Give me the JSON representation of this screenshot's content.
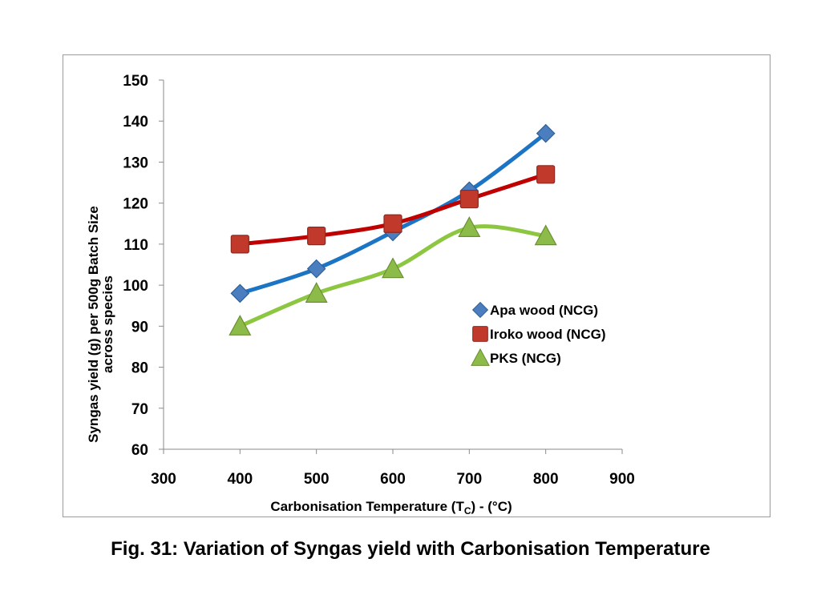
{
  "caption": "Fig. 31: Variation of Syngas yield with Carbonisation Temperature",
  "chart_data": {
    "type": "scatter",
    "title": "",
    "xlabel": "Carbonisation Temperature (T",
    "xlabel_sub": "C",
    "xlabel_suffix": ") - (°C)",
    "ylabel_line1": "Syngas yield (g) per 500g Batch  Size",
    "ylabel_line2": "across  species",
    "xlim": [
      300,
      900
    ],
    "ylim": [
      60,
      150
    ],
    "xticks": [
      300,
      400,
      500,
      600,
      700,
      800,
      900
    ],
    "yticks": [
      60,
      70,
      80,
      90,
      100,
      110,
      120,
      130,
      140,
      150
    ],
    "grid": false,
    "legend_position": "right",
    "series": [
      {
        "name": "Apa wood (NCG)",
        "marker": "diamond",
        "marker_color": "#4a7ebf",
        "line_color": "#1c75c4",
        "x": [
          400,
          500,
          600,
          700,
          800
        ],
        "y": [
          98,
          104,
          113,
          123,
          137
        ]
      },
      {
        "name": "Iroko wood (NCG)",
        "marker": "square",
        "marker_color": "#c0392b",
        "line_color": "#c00000",
        "x": [
          400,
          500,
          600,
          700,
          800
        ],
        "y": [
          110,
          112,
          115,
          121,
          127
        ]
      },
      {
        "name": "PKS (NCG)",
        "marker": "triangle",
        "marker_color": "#8dbb4a",
        "line_color": "#8dc640",
        "x": [
          400,
          500,
          600,
          700,
          800
        ],
        "y": [
          90,
          98,
          104,
          114,
          112
        ]
      }
    ]
  }
}
